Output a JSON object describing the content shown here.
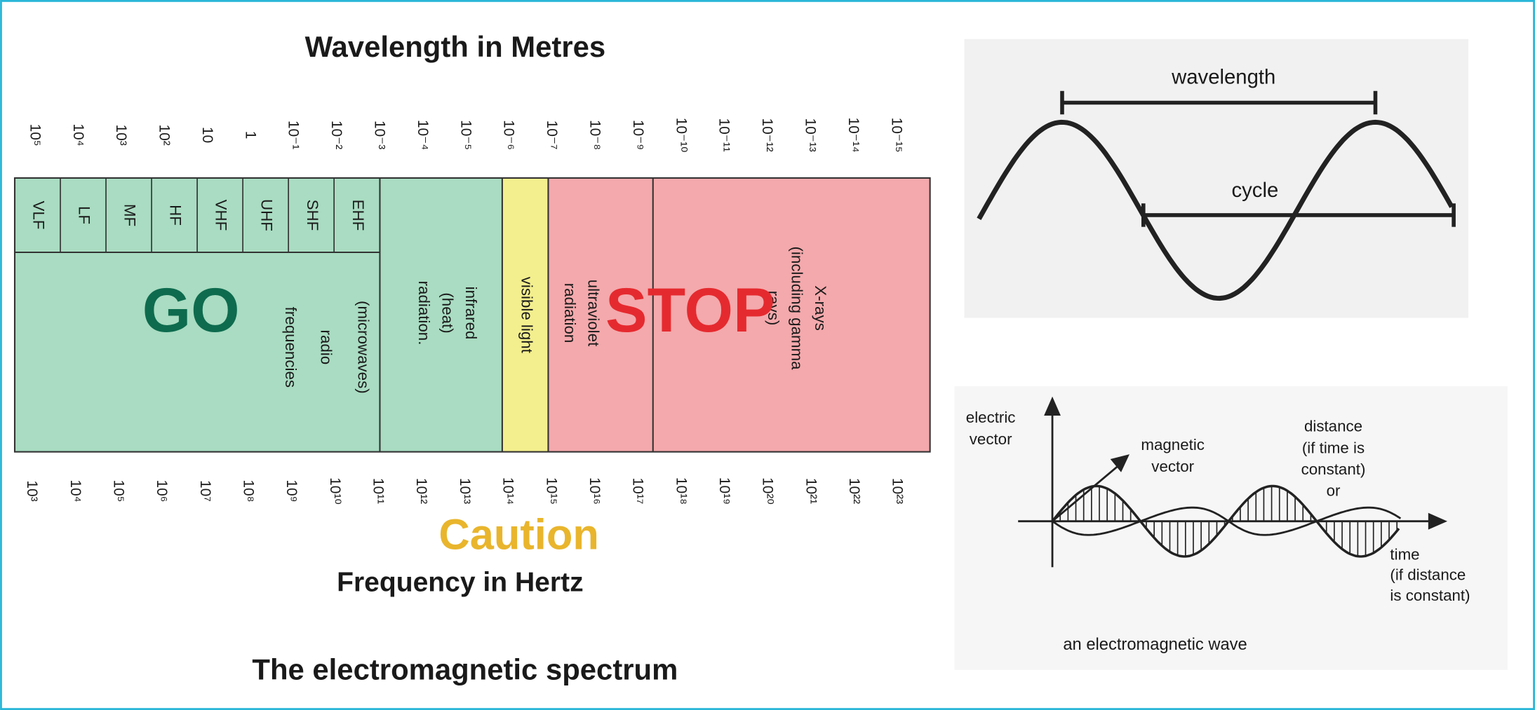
{
  "spectrum": {
    "wavelength_title": "Wavelength in Metres",
    "wavelength_ticks": [
      "10⁵",
      "10⁴",
      "10³",
      "10²",
      "10",
      "1",
      "10⁻¹",
      "10⁻²",
      "10⁻³",
      "10⁻⁴",
      "10⁻⁵",
      "10⁻⁶",
      "10⁻⁷",
      "10⁻⁸",
      "10⁻⁹",
      "10⁻¹⁰",
      "10⁻¹¹",
      "10⁻¹²",
      "10⁻¹³",
      "10⁻¹⁴",
      "10⁻¹⁵"
    ],
    "bands": [
      "VLF",
      "LF",
      "MF",
      "HF",
      "VHF",
      "UHF",
      "SHF",
      "EHF"
    ],
    "microwaves": [
      "(microwaves)"
    ],
    "radio": [
      "radio",
      "frequencies"
    ],
    "infrared": [
      "infrared",
      "(heat)",
      "radiation."
    ],
    "visible": [
      "visible light"
    ],
    "ultraviolet": [
      "ultraviolet",
      "radiation"
    ],
    "xrays": [
      "X-rays",
      "(including gamma",
      "rays)"
    ],
    "frequency_ticks": [
      "10³",
      "10⁴",
      "10⁵",
      "10⁶",
      "10⁷",
      "10⁸",
      "10⁹",
      "10¹⁰",
      "10¹¹",
      "10¹²",
      "10¹³",
      "10¹⁴",
      "10¹⁵",
      "10¹⁶",
      "10¹⁷",
      "10¹⁸",
      "10¹⁹",
      "10²⁰",
      "10²¹",
      "10²²",
      "10²³"
    ],
    "frequency_title": "Frequency in Hertz",
    "caption": "The electromagnetic spectrum"
  },
  "overlays": {
    "go": "GO",
    "stop": "STOP",
    "caution": "Caution"
  },
  "wave_diagram": {
    "wavelength": "wavelength",
    "cycle": "cycle"
  },
  "em_wave_diagram": {
    "electric_vector": [
      "electric",
      "vector"
    ],
    "magnetic_vector": [
      "magnetic",
      "vector"
    ],
    "distance": [
      "distance",
      "(if time is",
      "constant)",
      "or"
    ],
    "time": [
      "time",
      "(if distance",
      "is constant)"
    ],
    "caption": "an electromagnetic wave"
  }
}
